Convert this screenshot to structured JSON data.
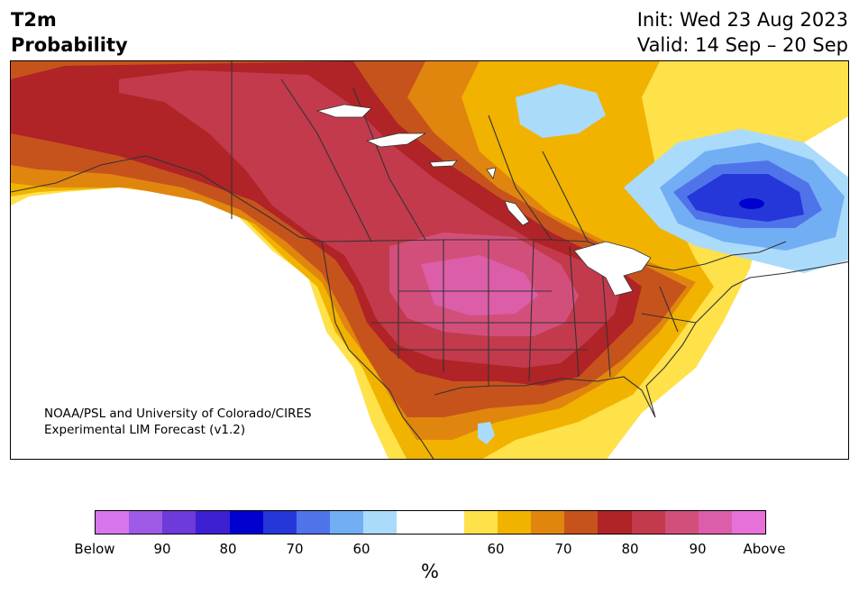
{
  "title": {
    "line1": "T2m",
    "line2": "Probability"
  },
  "dates": {
    "init": "Init: Wed 23 Aug 2023",
    "valid": "Valid: 14 Sep – 20 Sep"
  },
  "credit": {
    "line1": "NOAA/PSL and University of Colorado/CIRES",
    "line2": "Experimental LIM Forecast (v1.2)"
  },
  "colorbar": {
    "colors": [
      "#d676ea",
      "#9f5ae6",
      "#6e3ad9",
      "#3c1fd1",
      "#0000cf",
      "#2537d9",
      "#4f74ea",
      "#72aef4",
      "#aadbfb",
      "#ffffff",
      "#ffffff",
      "#ffe14a",
      "#f1b300",
      "#e0860e",
      "#c7531c",
      "#b02326",
      "#c33a4d",
      "#d34f7b",
      "#dc5ea8",
      "#e672d9"
    ],
    "tick_labels": [
      "Below",
      "90",
      "80",
      "70",
      "60",
      "60",
      "70",
      "80",
      "90",
      "Above"
    ],
    "unit": "%"
  }
}
